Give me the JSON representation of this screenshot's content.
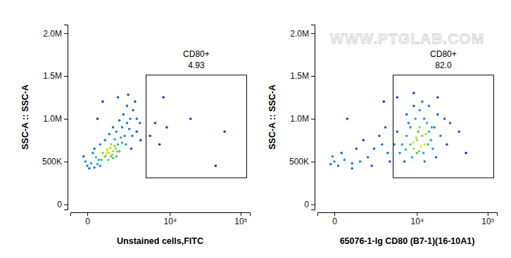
{
  "chart_data": [
    {
      "type": "scatter",
      "x_label": "Unstained cells,FITC",
      "y_label": "SSC-A :: SSC-A",
      "xlim": [
        -565,
        134000
      ],
      "ylim": [
        -60000,
        2100000
      ],
      "xticks": [
        0,
        {
          "value": 10000,
          "label": "10⁴"
        },
        {
          "value": 100000,
          "label": "10⁵"
        }
      ],
      "yticks": [
        0,
        {
          "value": 500000,
          "label": "500K"
        },
        {
          "value": 1000000,
          "label": "1.0M"
        },
        {
          "value": 1500000,
          "label": "1.5M"
        },
        {
          "value": 2000000,
          "label": "2.0M"
        }
      ],
      "x": [
        450,
        600,
        800,
        1000,
        1150,
        700,
        900,
        1200,
        500,
        650,
        1000,
        1300,
        1400,
        850,
        750,
        1100,
        1600,
        1800,
        1500,
        950,
        700,
        1100,
        900,
        1250,
        0,
        100,
        -50,
        200,
        300,
        250,
        150,
        350,
        50,
        400,
        -100,
        200,
        1200,
        1600,
        2000,
        2300,
        1700,
        2600,
        1400,
        2200,
        3000,
        2800,
        2000,
        1000,
        800,
        3400,
        2500,
        3000,
        1900,
        2400,
        3500,
        600,
        400,
        1300,
        2100,
        500,
        300,
        5000,
        6000,
        7000,
        9000,
        20000,
        45000,
        8000,
        60000
      ],
      "y": [
        520000,
        560000,
        600000,
        620000,
        650000,
        640000,
        700000,
        560000,
        600000,
        580000,
        540000,
        700000,
        620000,
        660000,
        520000,
        760000,
        720000,
        800000,
        780000,
        580000,
        610000,
        680000,
        560000,
        620000,
        450000,
        480000,
        500000,
        430000,
        470000,
        550000,
        600000,
        520000,
        420000,
        450000,
        560000,
        650000,
        850000,
        900000,
        950000,
        1000000,
        1050000,
        1100000,
        980000,
        880000,
        1000000,
        1200000,
        1150000,
        900000,
        820000,
        950000,
        800000,
        850000,
        700000,
        650000,
        750000,
        750000,
        700000,
        1250000,
        1280000,
        1200000,
        1000000,
        800000,
        950000,
        700000,
        900000,
        1000000,
        450000,
        1250000,
        850000
      ],
      "gate": {
        "name": "CD80+",
        "value": 4.93,
        "x": [
          4300,
          121000
        ],
        "y": [
          310000,
          1510000
        ]
      }
    },
    {
      "type": "scatter",
      "x_label": "65076-1-Ig CD80 (B7-1)(16-10A1)",
      "y_label": "SSC-A :: SSC-A",
      "watermark": "WWW.PTGLAB.COM",
      "xlim": [
        -565,
        134000
      ],
      "ylim": [
        -60000,
        2100000
      ],
      "xticks": [
        0,
        {
          "value": 10000,
          "label": "10⁴"
        },
        {
          "value": 100000,
          "label": "10⁵"
        }
      ],
      "yticks": [
        0,
        {
          "value": 500000,
          "label": "500K"
        },
        {
          "value": 1000000,
          "label": "1.0M"
        },
        {
          "value": 1500000,
          "label": "1.5M"
        },
        {
          "value": 2000000,
          "label": "2.0M"
        }
      ],
      "x": [
        8000,
        10000,
        12000,
        9000,
        11000,
        7000,
        13000,
        10000,
        15000,
        6000,
        9500,
        14000,
        8500,
        12500,
        16000,
        5500,
        11000,
        7500,
        18000,
        20000,
        6500,
        13000,
        9000,
        17000,
        22000,
        25000,
        10500,
        8000,
        12000,
        5000,
        30000,
        27000,
        4500,
        15000,
        19000,
        7000,
        11500,
        9800,
        13500,
        8800,
        10800,
        14500,
        6800,
        16500,
        12800,
        3500,
        2800,
        2000,
        1500,
        1000,
        600,
        300,
        100,
        0,
        -100,
        200,
        800,
        1200,
        2500,
        3200,
        400,
        1800,
        -50,
        600,
        3800,
        5000,
        9000,
        20000,
        40000,
        50000,
        3000
      ],
      "y": [
        700000,
        750000,
        800000,
        650000,
        900000,
        800000,
        700000,
        600000,
        850000,
        700000,
        1000000,
        950000,
        550000,
        600000,
        750000,
        600000,
        1100000,
        950000,
        900000,
        1050000,
        500000,
        500000,
        1150000,
        650000,
        800000,
        1000000,
        850000,
        900000,
        1200000,
        850000,
        950000,
        700000,
        700000,
        1150000,
        550000,
        1050000,
        680000,
        780000,
        820000,
        720000,
        620000,
        700000,
        640000,
        900000,
        1000000,
        600000,
        700000,
        650000,
        550000,
        500000,
        480000,
        520000,
        450000,
        500000,
        470000,
        600000,
        650000,
        750000,
        800000,
        900000,
        1000000,
        450000,
        560000,
        420000,
        500000,
        1250000,
        1300000,
        1250000,
        850000,
        600000,
        1200000
      ],
      "gate": {
        "name": "CD80+",
        "value": 82.0,
        "value_label": "82.0",
        "x": [
          4300,
          121000
        ],
        "y": [
          310000,
          1510000
        ]
      }
    }
  ]
}
